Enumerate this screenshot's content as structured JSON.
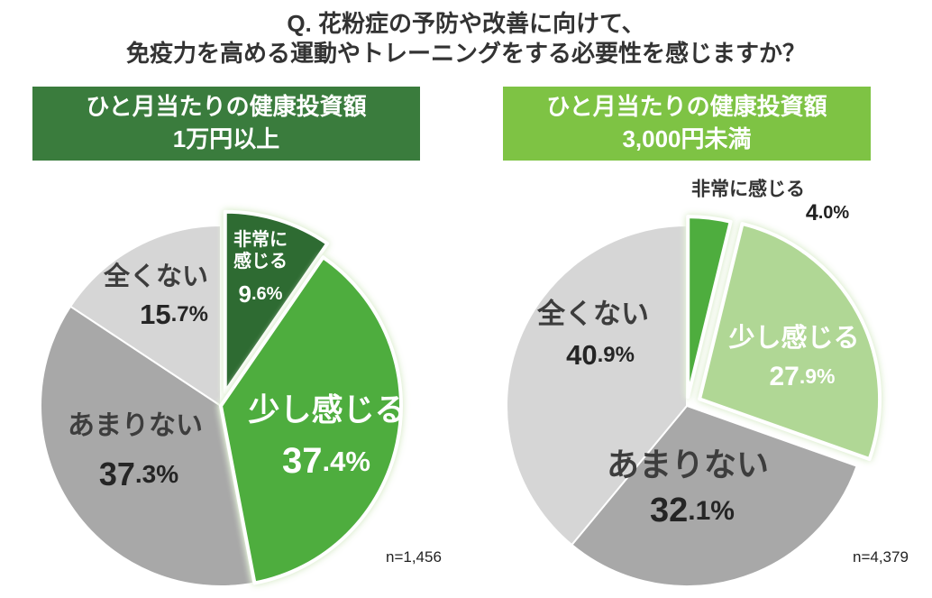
{
  "title": {
    "line1": "Q. 花粉症の予防や改善に向けて、",
    "line2": "免疫力を高める運動やトレーニングをする必要性を感じますか？"
  },
  "colors": {
    "header_left_bg": "#3a7c3d",
    "header_right_bg": "#7ec344",
    "title_text": "#333333"
  },
  "chart_data": [
    {
      "type": "pie",
      "header_line1": "ひと月当たりの健康投資額",
      "header_line2": "1万円以上",
      "n_label": "n=1,456",
      "start": "top",
      "direction": "clockwise",
      "legend_position": "none",
      "slices": [
        {
          "label": "非常に感じる",
          "value": 9.6,
          "color": "#2e6b32"
        },
        {
          "label": "少し感じる",
          "value": 37.4,
          "color": "#4ead3e"
        },
        {
          "label": "あまりない",
          "value": 37.3,
          "color": "#a8a8a8"
        },
        {
          "label": "全くない",
          "value": 15.7,
          "color": "#d6d6d6"
        }
      ]
    },
    {
      "type": "pie",
      "header_line1": "ひと月当たりの健康投資額",
      "header_line2": "3,000円未満",
      "n_label": "n=4,379",
      "start": "top",
      "direction": "clockwise",
      "legend_position": "none",
      "slices": [
        {
          "label": "非常に感じる",
          "value": 4.0,
          "color": "#4ead3e"
        },
        {
          "label": "少し感じる",
          "value": 27.9,
          "color": "#b0d795"
        },
        {
          "label": "あまりない",
          "value": 32.1,
          "color": "#a8a8a8"
        },
        {
          "label": "全くない",
          "value": 40.9,
          "color": "#d6d6d6"
        }
      ]
    }
  ]
}
